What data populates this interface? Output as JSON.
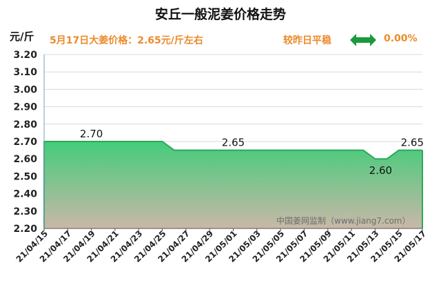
{
  "header": {
    "title": "安丘一般泥姜价格走势",
    "unit": "元/斤",
    "today_price": "5月17日大姜价格：2.65元/斤左右",
    "compare_label": "较昨日平稳",
    "change": "0.00%"
  },
  "watermark": "中国姜网监制（www.jiang7.com）",
  "colors": {
    "line": "#2ca85a",
    "fill_top": "#44cc7a",
    "fill_bottom": "#c9b8a8",
    "accent": "#ec8a2b",
    "arrow": "#1a9a3c"
  },
  "icons": {
    "change_arrow": "double-arrow-icon"
  },
  "chart_data": {
    "type": "area",
    "title": "安丘一般泥姜价格走势",
    "ylabel": "元/斤",
    "ylim": [
      2.2,
      3.2
    ],
    "yticks": [
      "3.20",
      "3.10",
      "3.00",
      "2.90",
      "2.80",
      "2.70",
      "2.60",
      "2.50",
      "2.40",
      "2.30",
      "2.20"
    ],
    "xticks": [
      "21/04/15",
      "21/04/17",
      "21/04/19",
      "21/04/21",
      "21/04/23",
      "21/04/25",
      "21/04/27",
      "21/04/29",
      "21/05/01",
      "21/05/03",
      "21/05/05",
      "21/05/07",
      "21/05/09",
      "21/05/11",
      "21/05/13",
      "21/05/15",
      "21/05/17"
    ],
    "x": [
      "21/04/15",
      "21/04/16",
      "21/04/17",
      "21/04/18",
      "21/04/19",
      "21/04/20",
      "21/04/21",
      "21/04/22",
      "21/04/23",
      "21/04/24",
      "21/04/25",
      "21/04/26",
      "21/04/27",
      "21/04/28",
      "21/04/29",
      "21/04/30",
      "21/05/01",
      "21/05/02",
      "21/05/03",
      "21/05/04",
      "21/05/05",
      "21/05/06",
      "21/05/07",
      "21/05/08",
      "21/05/09",
      "21/05/10",
      "21/05/11",
      "21/05/12",
      "21/05/13",
      "21/05/14",
      "21/05/15",
      "21/05/16",
      "21/05/17"
    ],
    "values": [
      2.7,
      2.7,
      2.7,
      2.7,
      2.7,
      2.7,
      2.7,
      2.7,
      2.7,
      2.7,
      2.7,
      2.65,
      2.65,
      2.65,
      2.65,
      2.65,
      2.65,
      2.65,
      2.65,
      2.65,
      2.65,
      2.65,
      2.65,
      2.65,
      2.65,
      2.65,
      2.65,
      2.65,
      2.6,
      2.6,
      2.65,
      2.65,
      2.65
    ],
    "labels": [
      {
        "x": "21/04/19",
        "text": "2.70"
      },
      {
        "x": "21/05/01",
        "text": "2.65"
      },
      {
        "x": "21/05/13",
        "text": "2.60"
      },
      {
        "x": "21/05/17",
        "text": "2.65"
      }
    ],
    "grid": "horizontal"
  }
}
